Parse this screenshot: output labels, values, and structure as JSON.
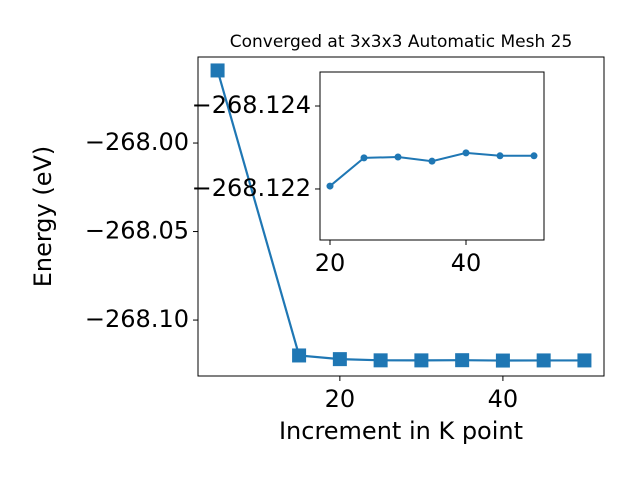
{
  "chart_data": [
    {
      "type": "line",
      "title": "Converged at 3x3x3 Automatic Mesh 25",
      "x_label": "Increment in K point",
      "y_label": "Energy (eV)",
      "x": [
        5,
        15,
        20,
        25,
        30,
        35,
        40,
        45,
        50
      ],
      "series": [
        {
          "color": "#1f77b4",
          "marker": "square",
          "values": [
            -267.959,
            -268.12,
            -268.12207,
            -268.12275,
            -268.12277,
            -268.12267,
            -268.12287,
            -268.1228,
            -268.1228
          ]
        }
      ],
      "xlim": [
        2.6,
        52.4
      ],
      "ylim": [
        -268.1316,
        -267.9514
      ],
      "xticks": [
        20,
        40
      ],
      "yticks": [
        {
          "value": -268.1,
          "label": "−268.10"
        },
        {
          "value": -268.05,
          "label": "−268.05"
        },
        {
          "value": -268.0,
          "label": "−268.00"
        }
      ]
    },
    {
      "type": "line",
      "x": [
        20,
        25,
        30,
        35,
        40,
        45,
        50
      ],
      "series": [
        {
          "color": "#1f77b4",
          "marker": "circle",
          "values": [
            -268.12207,
            -268.12275,
            -268.12277,
            -268.12267,
            -268.12287,
            -268.1228,
            -268.1228
          ]
        }
      ],
      "xlim": [
        18.53,
        51.47
      ],
      "ylim": [
        -268.12077,
        -268.12482
      ],
      "xticks": [
        20,
        40
      ],
      "yticks": [
        {
          "value": -268.122,
          "label": "−268.122"
        },
        {
          "value": -268.124,
          "label": "−268.124"
        }
      ]
    }
  ]
}
